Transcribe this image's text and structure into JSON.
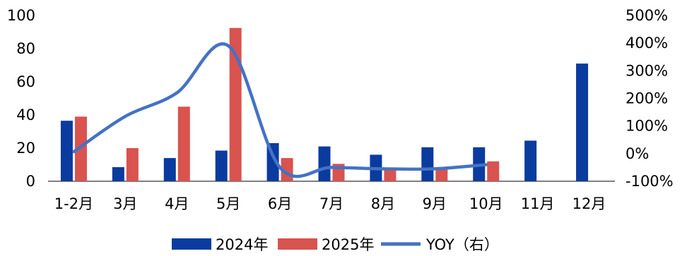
{
  "chart_data": {
    "type": "bar",
    "categories": [
      "1-2月",
      "3月",
      "4月",
      "5月",
      "6月",
      "7月",
      "8月",
      "9月",
      "10月",
      "11月",
      "12月"
    ],
    "series": [
      {
        "name": "2024年",
        "kind": "bar",
        "axis": "left",
        "color": "#0a3b9f",
        "values": [
          36.5,
          8.5,
          14,
          18.5,
          23,
          21,
          16,
          20.5,
          20.5,
          24.5,
          71
        ]
      },
      {
        "name": "2025年",
        "kind": "bar",
        "axis": "left",
        "color": "#d9534f",
        "values": [
          39,
          20,
          45,
          92.5,
          14,
          10.5,
          8,
          8,
          12,
          null,
          null
        ]
      },
      {
        "name": "YOY（右）",
        "kind": "line",
        "axis": "right",
        "color": "#4472c4",
        "values": [
          7,
          135,
          220,
          390,
          -50,
          -50,
          -55,
          -55,
          -40,
          null,
          null
        ]
      }
    ],
    "left_axis": {
      "min": 0,
      "max": 100,
      "ticks": [
        "0",
        "20",
        "40",
        "60",
        "80",
        "100"
      ]
    },
    "right_axis": {
      "min": -100,
      "max": 500,
      "ticks": [
        "-100%",
        "0%",
        "100%",
        "200%",
        "300%",
        "400%",
        "500%"
      ]
    },
    "legend_position": "bottom",
    "grid": false
  }
}
